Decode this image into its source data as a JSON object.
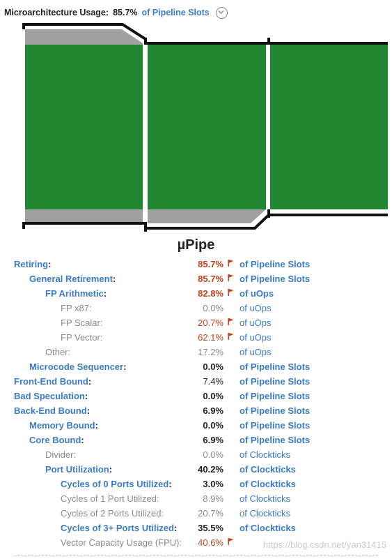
{
  "header": {
    "label": "Microarchitecture Usage:",
    "value": "85.7%",
    "unit": "of Pipeline Slots"
  },
  "pipe_title": "µPipe",
  "colors": {
    "retiring_green": "#218731",
    "bound_gray": "#a0a0a0",
    "link_blue": "#3a7bc8",
    "flag_red": "#c0431c"
  },
  "pipeline_fill": [
    0.857,
    0.857,
    0.857
  ],
  "metrics": [
    {
      "name": "Retiring",
      "colon": ":",
      "value": "85.7%",
      "flag": true,
      "unit": "of Pipeline Slots",
      "level": 0,
      "style": "bold"
    },
    {
      "name": "General Retirement",
      "colon": ":",
      "value": "85.7%",
      "flag": true,
      "unit": "of Pipeline Slots",
      "level": 1,
      "style": "bold"
    },
    {
      "name": "FP Arithmetic",
      "colon": ":",
      "value": "82.8%",
      "flag": true,
      "unit": "of uOps",
      "level": 2,
      "style": "bold"
    },
    {
      "name": "FP x87",
      "colon": ":",
      "value": "0.0%",
      "flag": false,
      "unit": "of uOps",
      "level": 3,
      "style": "normal"
    },
    {
      "name": "FP Scalar",
      "colon": ":",
      "value": "20.7%",
      "flag": true,
      "unit": "of uOps",
      "level": 3,
      "style": "normal"
    },
    {
      "name": "FP Vector",
      "colon": ":",
      "value": "62.1%",
      "flag": true,
      "unit": "of uOps",
      "level": 3,
      "style": "normal"
    },
    {
      "name": "Other",
      "colon": ":",
      "value": "17.2%",
      "flag": false,
      "unit": "of uOps",
      "level": 2,
      "style": "normal"
    },
    {
      "name": "Microcode Sequencer",
      "colon": ":",
      "value": "0.0%",
      "flag": false,
      "unit": "of Pipeline Slots",
      "level": 1,
      "style": "bold"
    },
    {
      "name": "Front-End Bound",
      "colon": ":",
      "value": "7.4%",
      "flag": false,
      "unit": "of Pipeline Slots",
      "level": 0,
      "style": "bold-val-normal"
    },
    {
      "name": "Bad Speculation",
      "colon": ":",
      "value": "0.0%",
      "flag": false,
      "unit": "of Pipeline Slots",
      "level": 0,
      "style": "bold"
    },
    {
      "name": "Back-End Bound",
      "colon": ":",
      "value": "6.9%",
      "flag": false,
      "unit": "of Pipeline Slots",
      "level": 0,
      "style": "bold"
    },
    {
      "name": "Memory Bound",
      "colon": ":",
      "value": "0.0%",
      "flag": false,
      "unit": "of Pipeline Slots",
      "level": 1,
      "style": "bold"
    },
    {
      "name": "Core Bound",
      "colon": ":",
      "value": "6.9%",
      "flag": false,
      "unit": "of Pipeline Slots",
      "level": 1,
      "style": "bold"
    },
    {
      "name": "Divider",
      "colon": ":",
      "value": "0.0%",
      "flag": false,
      "unit": "of Clockticks",
      "level": 2,
      "style": "normal"
    },
    {
      "name": "Port Utilization",
      "colon": ":",
      "value": "40.2%",
      "flag": false,
      "unit": "of Clockticks",
      "level": 2,
      "style": "bold"
    },
    {
      "name": "Cycles of 0 Ports Utilized",
      "colon": ":",
      "value": "3.0%",
      "flag": false,
      "unit": "of Clockticks",
      "level": 3,
      "style": "bold"
    },
    {
      "name": "Cycles of 1 Port Utilized",
      "colon": ":",
      "value": "8.9%",
      "flag": false,
      "unit": "of Clockticks",
      "level": 3,
      "style": "normal"
    },
    {
      "name": "Cycles of 2 Ports Utilized",
      "colon": ":",
      "value": "20.7%",
      "flag": false,
      "unit": "of Clockticks",
      "level": 3,
      "style": "normal"
    },
    {
      "name": "Cycles of 3+ Ports Utilized",
      "colon": ":",
      "value": "35.5%",
      "flag": false,
      "unit": "of Clockticks",
      "level": 3,
      "style": "bold"
    },
    {
      "name": "Vector Capacity Usage (FPU)",
      "colon": ":",
      "value": "40.6%",
      "flag": true,
      "unit": "",
      "level": 3,
      "style": "normal"
    }
  ],
  "watermark": "https://blog.csdn.net/yan31415"
}
